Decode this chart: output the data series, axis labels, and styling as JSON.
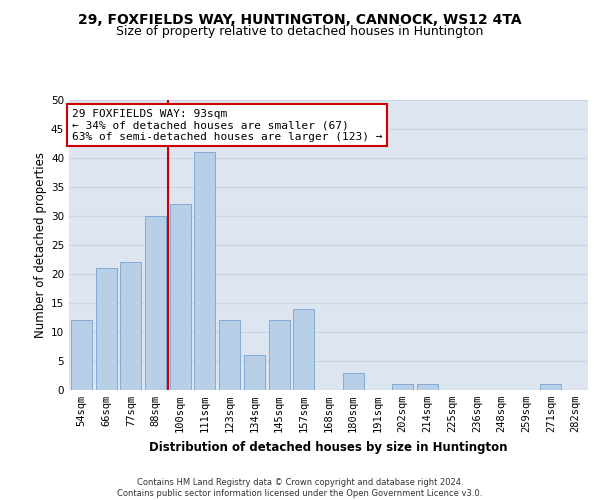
{
  "title": "29, FOXFIELDS WAY, HUNTINGTON, CANNOCK, WS12 4TA",
  "subtitle": "Size of property relative to detached houses in Huntington",
  "xlabel": "Distribution of detached houses by size in Huntington",
  "ylabel": "Number of detached properties",
  "categories": [
    "54sqm",
    "66sqm",
    "77sqm",
    "88sqm",
    "100sqm",
    "111sqm",
    "123sqm",
    "134sqm",
    "145sqm",
    "157sqm",
    "168sqm",
    "180sqm",
    "191sqm",
    "202sqm",
    "214sqm",
    "225sqm",
    "236sqm",
    "248sqm",
    "259sqm",
    "271sqm",
    "282sqm"
  ],
  "values": [
    12,
    21,
    22,
    30,
    32,
    41,
    12,
    6,
    12,
    14,
    0,
    3,
    0,
    1,
    1,
    0,
    0,
    0,
    0,
    1,
    0
  ],
  "bar_color": "#b8cfe8",
  "bar_edge_color": "#6699cc",
  "vline_color": "#cc0000",
  "vline_x_index": 3.5,
  "annotation_text": "29 FOXFIELDS WAY: 93sqm\n← 34% of detached houses are smaller (67)\n63% of semi-detached houses are larger (123) →",
  "annotation_box_facecolor": "#ffffff",
  "annotation_box_edgecolor": "#cc0000",
  "ylim": [
    0,
    50
  ],
  "yticks": [
    0,
    5,
    10,
    15,
    20,
    25,
    30,
    35,
    40,
    45,
    50
  ],
  "grid_color": "#c8d4e8",
  "background_color": "#dde6f0",
  "footer_text": "Contains HM Land Registry data © Crown copyright and database right 2024.\nContains public sector information licensed under the Open Government Licence v3.0.",
  "title_fontsize": 10,
  "subtitle_fontsize": 9,
  "xlabel_fontsize": 8.5,
  "ylabel_fontsize": 8.5,
  "annotation_fontsize": 8,
  "tick_fontsize": 7.5,
  "footer_fontsize": 6
}
